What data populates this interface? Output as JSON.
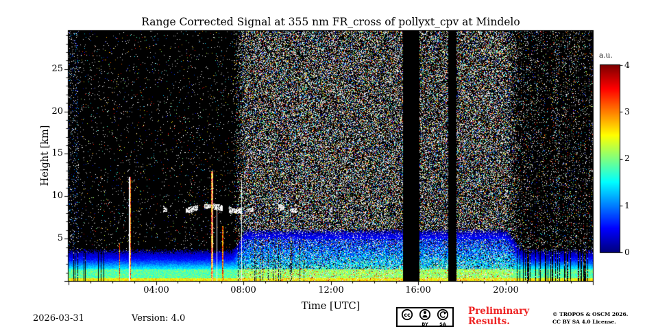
{
  "chart_data": {
    "type": "heatmap",
    "title": "Range Corrected Signal at 355 nm FR_cross of pollyxt_cpv at Mindelo",
    "xlabel": "Time [UTC]",
    "ylabel": "Height [km]",
    "x_tick_labels": [
      "04:00",
      "08:00",
      "12:00",
      "16:00",
      "20:00"
    ],
    "x_tick_hours": [
      4,
      8,
      12,
      16,
      20
    ],
    "x_range_hours": [
      0,
      24
    ],
    "y_tick_labels": [
      "5",
      "10",
      "15",
      "20",
      "25"
    ],
    "y_tick_km": [
      5,
      10,
      15,
      20,
      25
    ],
    "y_range_km": [
      0,
      29.5
    ],
    "colorbar": {
      "label": "a.u.",
      "tick_labels_top_to_bottom": [
        "4",
        "3",
        "2",
        "1",
        "0"
      ],
      "range_au": [
        0,
        4
      ],
      "colormap": "jet"
    },
    "grid": false,
    "legend": "colorbar-right",
    "features": {
      "seed": 11,
      "speckle_white_fraction": 0.6,
      "night_noise_density": 0.03,
      "day_noise": {
        "ramp_up_utc": [
          7.4,
          8.2
        ],
        "ramp_down_utc": [
          19.9,
          20.9
        ],
        "density": 0.42
      },
      "left_edge": {
        "until_utc": 0.45,
        "extra_density": 0.08
      },
      "right_night": {
        "from_utc": 20.5,
        "density": 0.11
      },
      "boundary_layer": {
        "night_top_km": 2.6,
        "day_extra_km": 2.4,
        "surface_au": 2.25,
        "low_au": 1.85
      },
      "cloud_layer": {
        "from_utc": 4.3,
        "to_utc": 10.5,
        "center_km": 8.55,
        "dense_until_utc": 9.0
      },
      "data_gaps_utc": [
        [
          15.3,
          16.05
        ],
        [
          17.35,
          17.75
        ]
      ],
      "bright_columns": [
        {
          "t_utc": 2.32,
          "width_h": 0.05,
          "top_km": 4.5,
          "white_core": false
        },
        {
          "t_utc": 2.78,
          "width_h": 0.09,
          "top_km": 12.3,
          "white_core": true
        },
        {
          "t_utc": 6.55,
          "width_h": 0.11,
          "top_km": 13.0,
          "white_core": true
        },
        {
          "t_utc": 6.78,
          "width_h": 0.05,
          "top_km": 9.0,
          "white_core": true
        },
        {
          "t_utc": 7.05,
          "width_h": 0.05,
          "top_km": 6.5,
          "white_core": false
        },
        {
          "t_utc": 7.9,
          "width_h": 0.04,
          "top_km": 12.0,
          "white_core": true
        }
      ],
      "dark_low_columns": [
        {
          "from_utc": 0.15,
          "to_utc": 2.1,
          "density": 0.14,
          "top_km": 3.5
        },
        {
          "from_utc": 7.7,
          "to_utc": 11.6,
          "density": 0.12,
          "top_km": 5.2
        },
        {
          "from_utc": 20.5,
          "to_utc": 23.95,
          "density": 0.28,
          "top_km": 5.2
        }
      ]
    }
  },
  "footer": {
    "date": "2026-03-31",
    "version": "Version: 4.0",
    "preliminary": "Preliminary Results.",
    "copyright": "© TROPOS & OSCM 2026.\nCC BY SA 4.0 License.",
    "badge": {
      "cc": "cc",
      "by": "BY",
      "sa": "SA"
    }
  }
}
